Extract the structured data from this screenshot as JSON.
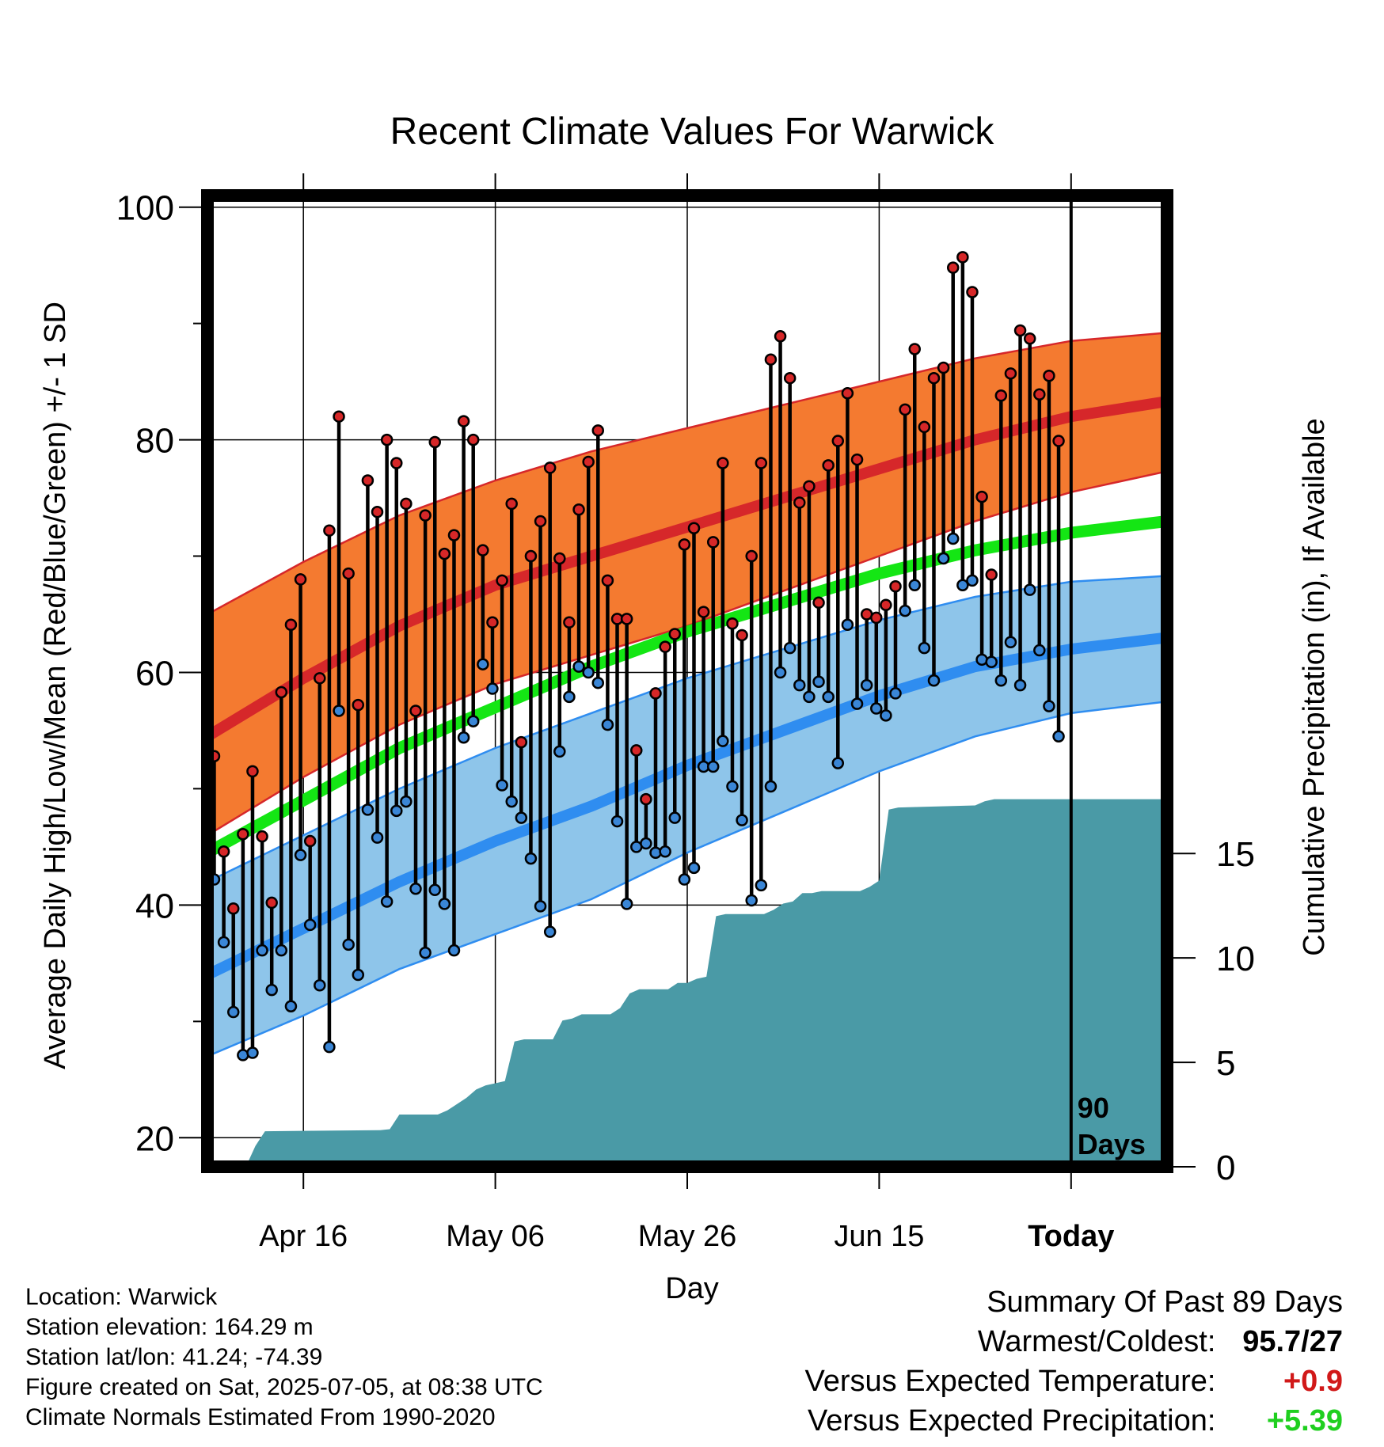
{
  "colors": {
    "high_band": "#f47a30",
    "high_mean": "#d6272a",
    "low_band": "#8ec5ea",
    "low_mean": "#2f8df0",
    "mean": "#14e614",
    "precip": "#4a9aa6",
    "dot_high": "#d62728",
    "dot_low": "#3a86d6",
    "positive_temp": "#d11919",
    "positive_precip": "#1fcf1f"
  },
  "chart_data": {
    "type": "line",
    "title": "Recent Climate Values For Warwick",
    "xlabel": "Day",
    "ylabel": "Average Daily High/Low/Mean (Red/Blue/Green) +/- 1 SD",
    "y2label": "Cumulative Precipitation (in), If Available",
    "ylim": [
      17.5,
      101
    ],
    "y_ticks": [
      20,
      40,
      60,
      80,
      100
    ],
    "y2lim": [
      0,
      46.5
    ],
    "y2_ticks": [
      0,
      5,
      10,
      15
    ],
    "x_ticks": [
      {
        "day": 10,
        "label": "Apr 16"
      },
      {
        "day": 30,
        "label": "May 06"
      },
      {
        "day": 50,
        "label": "May 26"
      },
      {
        "day": 70,
        "label": "Jun 15"
      },
      {
        "day": 90,
        "label": "Today"
      }
    ],
    "xlim": [
      0,
      100
    ],
    "grid": true,
    "today_day": 90,
    "today_label_line1": "90",
    "today_label_line2": "Days",
    "normals": {
      "high_mean": [
        54.5,
        59.5,
        64.0,
        67.5,
        70.0,
        72.5,
        75.0,
        77.5,
        80.0,
        82.0,
        83.3
      ],
      "high_sd_upper": [
        65.0,
        69.5,
        73.5,
        76.5,
        79.0,
        81.0,
        83.0,
        85.0,
        87.0,
        88.5,
        89.2
      ],
      "high_sd_lower": [
        46.0,
        51.0,
        55.5,
        59.0,
        61.5,
        64.0,
        67.0,
        70.0,
        73.0,
        75.5,
        77.3
      ],
      "mean": [
        44.5,
        49.0,
        53.5,
        57.0,
        60.5,
        63.5,
        66.0,
        68.5,
        70.5,
        72.0,
        73.0
      ],
      "low_mean": [
        34.0,
        38.0,
        42.0,
        45.5,
        48.5,
        52.0,
        55.0,
        58.0,
        60.5,
        62.0,
        63.0
      ],
      "low_sd_upper": [
        42.0,
        46.0,
        50.0,
        53.5,
        56.5,
        59.5,
        62.0,
        64.5,
        66.5,
        67.8,
        68.3
      ],
      "low_sd_lower": [
        27.0,
        30.5,
        34.5,
        37.5,
        40.5,
        44.5,
        48.0,
        51.5,
        54.5,
        56.5,
        57.5
      ]
    },
    "highs": [
      52.8,
      44.6,
      39.7,
      46.1,
      51.5,
      45.9,
      40.2,
      58.3,
      64.1,
      68.0,
      45.5,
      59.5,
      72.2,
      82.0,
      68.5,
      57.2,
      76.5,
      73.8,
      80.0,
      78.0,
      74.5,
      56.7,
      73.5,
      79.8,
      70.2,
      71.8,
      81.6,
      80.0,
      70.5,
      64.3,
      67.9,
      74.5,
      54.0,
      70.0,
      73.0,
      77.6,
      69.8,
      64.3,
      74.0,
      78.1,
      80.8,
      67.9,
      64.6,
      64.6,
      53.3,
      49.1,
      58.2,
      62.2,
      63.3,
      71.0,
      72.4,
      65.2,
      71.2,
      78.0,
      64.2,
      63.2,
      70.0,
      78.0,
      86.9,
      88.9,
      85.3,
      74.6,
      76.0,
      66.0,
      77.8,
      79.9,
      84.0,
      78.3,
      65.0,
      64.7,
      65.8,
      67.4,
      82.6,
      87.8,
      81.1,
      85.3,
      86.2,
      94.8,
      95.7,
      92.7,
      75.1,
      68.4,
      83.8,
      85.7,
      89.4,
      88.7,
      83.9,
      85.5,
      79.9
    ],
    "lows": [
      42.2,
      36.8,
      30.8,
      27.1,
      27.3,
      36.1,
      32.7,
      36.1,
      31.3,
      44.3,
      38.3,
      33.1,
      27.8,
      56.7,
      36.6,
      34.0,
      48.2,
      45.8,
      40.3,
      48.1,
      48.9,
      41.4,
      35.9,
      41.3,
      40.1,
      36.1,
      54.4,
      55.8,
      60.7,
      58.6,
      50.3,
      48.9,
      47.5,
      44.0,
      39.9,
      37.7,
      53.2,
      57.9,
      60.5,
      60.0,
      59.1,
      55.5,
      47.2,
      40.1,
      45.0,
      45.3,
      44.5,
      44.6,
      47.5,
      42.2,
      43.2,
      51.9,
      51.9,
      54.1,
      50.2,
      47.3,
      40.4,
      41.7,
      50.2,
      60.0,
      62.1,
      58.9,
      57.9,
      59.2,
      57.9,
      52.2,
      64.1,
      57.3,
      58.9,
      56.9,
      56.3,
      58.2,
      65.3,
      67.5,
      62.1,
      59.3,
      69.8,
      71.5,
      67.5,
      67.9,
      61.1,
      60.9,
      59.3,
      62.6,
      58.9,
      67.1,
      61.9,
      57.1,
      54.5
    ],
    "precip_cumulative": [
      [
        0,
        0
      ],
      [
        4,
        0
      ],
      [
        5,
        1.0
      ],
      [
        6,
        1.7
      ],
      [
        18,
        1.75
      ],
      [
        19,
        1.8
      ],
      [
        20,
        2.5
      ],
      [
        24,
        2.5
      ],
      [
        25,
        2.7
      ],
      [
        27,
        3.3
      ],
      [
        28,
        3.7
      ],
      [
        29,
        3.9
      ],
      [
        30,
        4.0
      ],
      [
        31,
        4.1
      ],
      [
        32,
        6.0
      ],
      [
        33,
        6.1
      ],
      [
        36,
        6.1
      ],
      [
        37,
        7.0
      ],
      [
        38,
        7.1
      ],
      [
        39,
        7.3
      ],
      [
        42,
        7.3
      ],
      [
        43,
        7.6
      ],
      [
        44,
        8.3
      ],
      [
        45,
        8.5
      ],
      [
        48,
        8.5
      ],
      [
        49,
        8.8
      ],
      [
        50,
        8.8
      ],
      [
        51,
        9.0
      ],
      [
        52,
        9.1
      ],
      [
        53,
        12.0
      ],
      [
        54,
        12.1
      ],
      [
        58,
        12.1
      ],
      [
        59,
        12.3
      ],
      [
        60,
        12.6
      ],
      [
        61,
        12.7
      ],
      [
        62,
        13.1
      ],
      [
        63,
        13.1
      ],
      [
        64,
        13.2
      ],
      [
        68,
        13.2
      ],
      [
        69,
        13.4
      ],
      [
        70,
        13.7
      ],
      [
        71,
        17.1
      ],
      [
        72,
        17.2
      ],
      [
        80,
        17.3
      ],
      [
        81,
        17.5
      ],
      [
        82,
        17.6
      ],
      [
        100,
        17.6
      ]
    ]
  },
  "info": {
    "location": "Location: Warwick",
    "elevation": "Station elevation: 164.29 m",
    "latlon": "Station lat/lon: 41.24; -74.39",
    "created": "Figure created on Sat, 2025-07-05, at 08:38 UTC",
    "normals": "Climate Normals Estimated From 1990-2020"
  },
  "summary": {
    "title": "Summary Of Past 89 Days",
    "warm_cold_label": "Warmest/Coldest:",
    "warm_cold_value": "95.7/27",
    "temp_label": "Versus Expected Temperature:",
    "temp_value": "+0.9",
    "precip_label": "Versus Expected Precipitation:",
    "precip_value": "+5.39"
  }
}
